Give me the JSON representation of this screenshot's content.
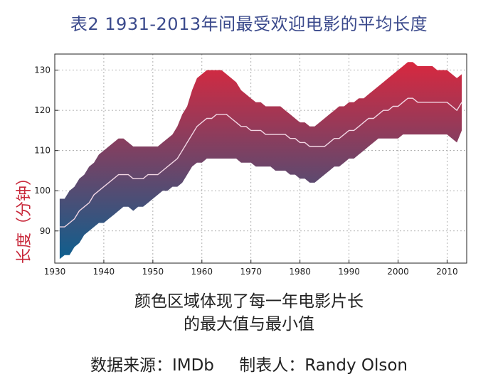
{
  "title": "表2  1931-2013年间最受欢迎电影的平均长度",
  "caption": {
    "line1": "颜色区域体现了每一年电影片长",
    "line2": "的最大值与最小值"
  },
  "source": {
    "data": "数据来源：IMDb",
    "author": "制表人：Randy Olson"
  },
  "colors": {
    "top": "#d8283f",
    "bottom": "#0e5f8e",
    "mean_line": "#f2d6e4",
    "title": "#3b4a8c",
    "ylabel": "#c8283a"
  },
  "chart_data": {
    "type": "area",
    "ylabel": "长度（分钟）",
    "xlim": [
      1930,
      2014
    ],
    "ylim": [
      82,
      134
    ],
    "xticks": [
      1930,
      1940,
      1950,
      1960,
      1970,
      1980,
      1990,
      2000,
      2010
    ],
    "yticks": [
      90,
      100,
      110,
      120,
      130
    ],
    "grid": true,
    "x": [
      1931,
      1932,
      1933,
      1934,
      1935,
      1936,
      1937,
      1938,
      1939,
      1940,
      1941,
      1942,
      1943,
      1944,
      1945,
      1946,
      1947,
      1948,
      1949,
      1950,
      1951,
      1952,
      1953,
      1954,
      1955,
      1956,
      1957,
      1958,
      1959,
      1960,
      1961,
      1962,
      1963,
      1964,
      1965,
      1966,
      1967,
      1968,
      1969,
      1970,
      1971,
      1972,
      1973,
      1974,
      1975,
      1976,
      1977,
      1978,
      1979,
      1980,
      1981,
      1982,
      1983,
      1984,
      1985,
      1986,
      1987,
      1988,
      1989,
      1990,
      1991,
      1992,
      1993,
      1994,
      1995,
      1996,
      1997,
      1998,
      1999,
      2000,
      2001,
      2002,
      2003,
      2004,
      2005,
      2006,
      2007,
      2008,
      2009,
      2010,
      2011,
      2012,
      2013
    ],
    "upper": [
      98,
      98,
      100,
      101,
      103,
      104,
      106,
      107,
      109,
      110,
      111,
      112,
      113,
      113,
      112,
      111,
      111,
      111,
      111,
      111,
      111,
      112,
      113,
      114,
      116,
      119,
      121,
      125,
      128,
      129,
      130,
      130,
      130,
      130,
      129,
      128,
      127,
      125,
      124,
      123,
      122,
      122,
      121,
      121,
      121,
      121,
      120,
      119,
      118,
      117,
      117,
      116,
      116,
      117,
      118,
      119,
      120,
      121,
      121,
      122,
      122,
      123,
      123,
      124,
      125,
      126,
      127,
      128,
      129,
      130,
      131,
      132,
      132,
      131,
      131,
      131,
      131,
      130,
      130,
      130,
      129,
      128,
      129
    ],
    "lower": [
      83,
      84,
      84,
      86,
      87,
      89,
      90,
      91,
      92,
      92,
      93,
      94,
      95,
      96,
      96,
      95,
      96,
      96,
      97,
      98,
      99,
      100,
      100,
      101,
      101,
      102,
      104,
      106,
      107,
      107,
      108,
      108,
      108,
      108,
      108,
      108,
      108,
      107,
      107,
      107,
      106,
      106,
      106,
      106,
      105,
      105,
      105,
      104,
      104,
      103,
      103,
      102,
      102,
      103,
      104,
      105,
      106,
      106,
      107,
      108,
      108,
      109,
      110,
      111,
      112,
      113,
      113,
      113,
      113,
      113,
      114,
      114,
      114,
      114,
      114,
      114,
      114,
      114,
      114,
      114,
      113,
      112,
      115
    ],
    "mean": [
      91,
      91,
      92,
      93,
      95,
      96,
      97,
      99,
      100,
      101,
      102,
      103,
      104,
      104,
      104,
      103,
      103,
      103,
      104,
      104,
      104,
      105,
      106,
      107,
      108,
      110,
      112,
      114,
      116,
      117,
      118,
      118,
      119,
      119,
      119,
      118,
      117,
      116,
      116,
      115,
      115,
      115,
      114,
      114,
      114,
      114,
      114,
      113,
      113,
      112,
      112,
      111,
      111,
      111,
      111,
      112,
      113,
      113,
      114,
      115,
      115,
      116,
      117,
      118,
      118,
      119,
      120,
      120,
      121,
      121,
      122,
      123,
      123,
      122,
      122,
      122,
      122,
      122,
      122,
      122,
      121,
      120,
      122
    ]
  }
}
